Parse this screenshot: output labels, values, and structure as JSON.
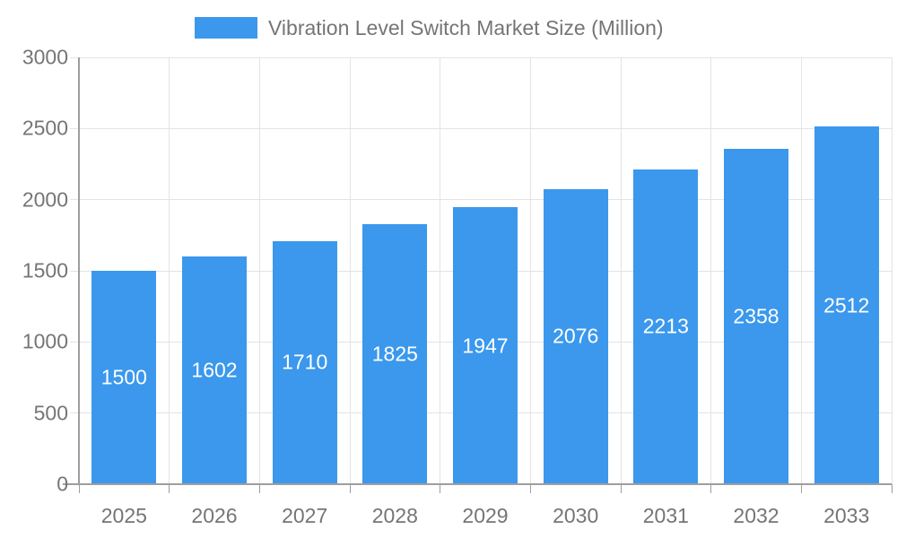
{
  "legend": {
    "label": "Vibration Level Switch Market Size (Million)",
    "position": "top"
  },
  "colors": {
    "bar": "#3b98ec",
    "grid": "#e3e3e3",
    "axis": "#9e9e9e",
    "text": "#757575",
    "bar_label": "#ffffff",
    "background": "#ffffff"
  },
  "chart_data": {
    "type": "bar",
    "title": "Vibration Level Switch Market Size (Million)",
    "categories": [
      "2025",
      "2026",
      "2027",
      "2028",
      "2029",
      "2030",
      "2031",
      "2032",
      "2033"
    ],
    "values": [
      1500,
      1602,
      1710,
      1825,
      1947,
      2076,
      2213,
      2358,
      2512
    ],
    "xlabel": "",
    "ylabel": "",
    "ylim": [
      0,
      3000
    ],
    "yticks": [
      0,
      500,
      1000,
      1500,
      2000,
      2500,
      3000
    ],
    "grid": true,
    "legend_position": "top",
    "value_labels": "inside-center"
  }
}
